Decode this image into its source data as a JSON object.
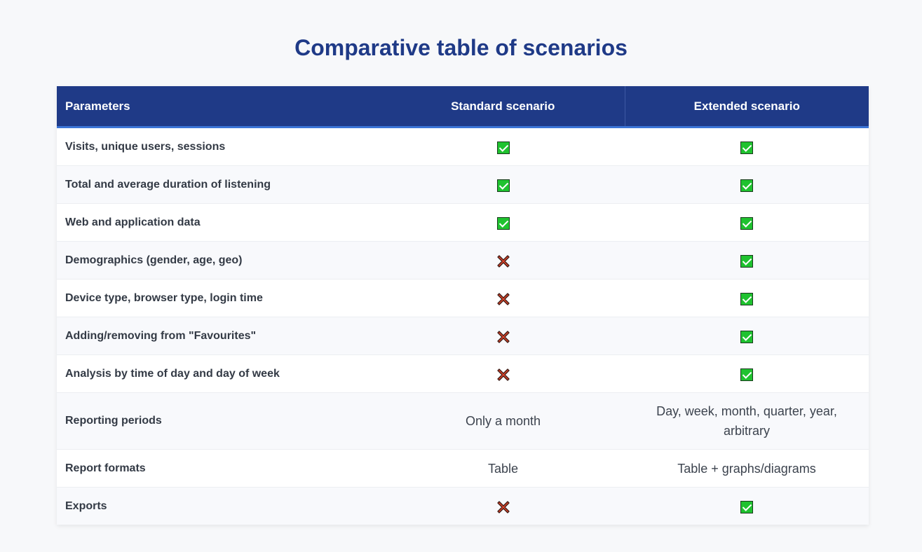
{
  "title": "Comparative table of scenarios",
  "columns": {
    "parameters": "Parameters",
    "standard": "Standard scenario",
    "extended": "Extended scenario"
  },
  "rows": [
    {
      "parameter": "Visits, unique users, sessions",
      "standard": "check",
      "extended": "check"
    },
    {
      "parameter": "Total and average duration of listening",
      "standard": "check",
      "extended": "check"
    },
    {
      "parameter": "Web and application data",
      "standard": "check",
      "extended": "check"
    },
    {
      "parameter": "Demographics (gender, age, geo)",
      "standard": "cross",
      "extended": "check"
    },
    {
      "parameter": "Device type, browser type, login time",
      "standard": "cross",
      "extended": "check"
    },
    {
      "parameter": "Adding/removing from \"Favourites\"",
      "standard": "cross",
      "extended": "check"
    },
    {
      "parameter": "Analysis by time of day and day of week",
      "standard": "cross",
      "extended": "check"
    },
    {
      "parameter": "Reporting periods",
      "standard": "Only a month",
      "extended": "Day, week, month, quarter, year, arbitrary"
    },
    {
      "parameter": "Report formats",
      "standard": "Table",
      "extended": "Table + graphs/diagrams"
    },
    {
      "parameter": "Exports",
      "standard": "cross",
      "extended": "check"
    }
  ],
  "icons": {
    "check": "check-icon",
    "cross": "cross-icon"
  },
  "colors": {
    "header_bg": "#1f3a87",
    "title": "#1f3a87",
    "check": "#1fc22f",
    "cross": "#e0452b"
  }
}
